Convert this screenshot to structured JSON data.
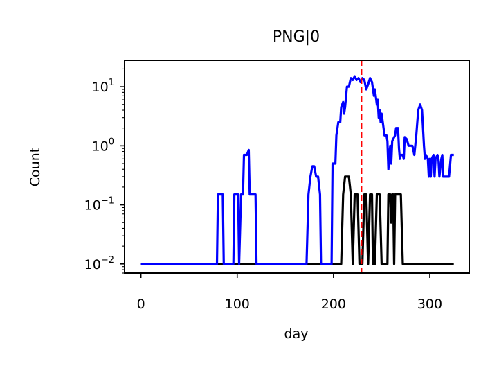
{
  "chart_data": {
    "type": "line",
    "title": "PNG|0",
    "xlabel": "day",
    "ylabel": "Count",
    "yscale": "log",
    "xlim": [
      -17,
      341
    ],
    "ylim": [
      0.007,
      28
    ],
    "xticks": [
      0,
      100,
      200,
      300
    ],
    "xtick_labels": [
      "0",
      "100",
      "200",
      "300"
    ],
    "yticks": [
      0.01,
      0.1,
      1,
      10
    ],
    "ytick_labels": [
      {
        "base": "10",
        "exp": "−2"
      },
      {
        "base": "10",
        "exp": "−1"
      },
      {
        "base": "10",
        "exp": "0"
      },
      {
        "base": "10",
        "exp": "1"
      }
    ],
    "grid": false,
    "vline": {
      "x": 229,
      "color": "#ff0000",
      "style": "dashed"
    },
    "series": [
      {
        "color": "#000000",
        "points": [
          [
            0,
            0.01
          ],
          [
            208,
            0.01
          ],
          [
            210,
            0.15
          ],
          [
            212,
            0.3
          ],
          [
            216,
            0.3
          ],
          [
            218,
            0.15
          ],
          [
            220,
            0.01
          ],
          [
            222,
            0.15
          ],
          [
            225,
            0.15
          ],
          [
            227,
            0.01
          ],
          [
            230,
            0.01
          ],
          [
            232,
            0.15
          ],
          [
            234,
            0.15
          ],
          [
            236,
            0.01
          ],
          [
            238,
            0.15
          ],
          [
            240,
            0.15
          ],
          [
            241,
            0.01
          ],
          [
            243,
            0.01
          ],
          [
            245,
            0.15
          ],
          [
            248,
            0.15
          ],
          [
            250,
            0.01
          ],
          [
            256,
            0.01
          ],
          [
            257,
            0.15
          ],
          [
            259,
            0.15
          ],
          [
            260,
            0.05
          ],
          [
            261,
            0.15
          ],
          [
            262,
            0.15
          ],
          [
            263,
            0.01
          ],
          [
            264,
            0.15
          ],
          [
            270,
            0.15
          ],
          [
            272,
            0.01
          ],
          [
            325,
            0.01
          ]
        ]
      },
      {
        "color": "#0000ff",
        "points": [
          [
            0,
            0.01
          ],
          [
            79,
            0.01
          ],
          [
            80,
            0.15
          ],
          [
            85,
            0.15
          ],
          [
            86,
            0.01
          ],
          [
            96,
            0.01
          ],
          [
            97,
            0.15
          ],
          [
            101,
            0.15
          ],
          [
            102,
            0.01
          ],
          [
            104,
            0.15
          ],
          [
            106,
            0.15
          ],
          [
            107,
            0.7
          ],
          [
            110,
            0.7
          ],
          [
            112,
            0.85
          ],
          [
            113,
            0.15
          ],
          [
            119,
            0.15
          ],
          [
            120,
            0.01
          ],
          [
            172,
            0.01
          ],
          [
            174,
            0.15
          ],
          [
            176,
            0.3
          ],
          [
            178,
            0.45
          ],
          [
            180,
            0.45
          ],
          [
            182,
            0.3
          ],
          [
            184,
            0.3
          ],
          [
            186,
            0.15
          ],
          [
            187,
            0.01
          ],
          [
            198,
            0.01
          ],
          [
            199,
            0.5
          ],
          [
            202,
            0.5
          ],
          [
            203,
            1.5
          ],
          [
            205,
            2.5
          ],
          [
            207,
            2.5
          ],
          [
            208,
            4.5
          ],
          [
            210,
            5.5
          ],
          [
            211,
            3.5
          ],
          [
            212,
            4.5
          ],
          [
            214,
            10
          ],
          [
            216,
            10
          ],
          [
            218,
            14
          ],
          [
            220,
            13
          ],
          [
            222,
            15
          ],
          [
            224,
            13
          ],
          [
            226,
            14
          ],
          [
            228,
            12
          ],
          [
            230,
            14
          ],
          [
            232,
            13
          ],
          [
            234,
            9
          ],
          [
            236,
            11
          ],
          [
            238,
            14
          ],
          [
            240,
            12
          ],
          [
            242,
            7
          ],
          [
            243,
            9
          ],
          [
            245,
            5
          ],
          [
            246,
            6
          ],
          [
            247,
            3
          ],
          [
            248,
            4
          ],
          [
            249,
            2.5
          ],
          [
            250,
            3.5
          ],
          [
            252,
            2
          ],
          [
            253,
            1.5
          ],
          [
            255,
            1.5
          ],
          [
            256,
            1.2
          ],
          [
            257,
            0.4
          ],
          [
            258,
            0.7
          ],
          [
            259,
            1
          ],
          [
            260,
            0.5
          ],
          [
            261,
            1.2
          ],
          [
            262,
            1.3
          ],
          [
            264,
            1.5
          ],
          [
            265,
            2
          ],
          [
            267,
            2
          ],
          [
            268,
            0.9
          ],
          [
            269,
            0.6
          ],
          [
            270,
            0.7
          ],
          [
            272,
            0.7
          ],
          [
            273,
            0.6
          ],
          [
            274,
            1.4
          ],
          [
            276,
            1.3
          ],
          [
            278,
            1
          ],
          [
            280,
            1
          ],
          [
            282,
            1
          ],
          [
            284,
            0.7
          ],
          [
            286,
            1.5
          ],
          [
            288,
            4
          ],
          [
            290,
            5
          ],
          [
            292,
            4
          ],
          [
            294,
            1
          ],
          [
            295,
            0.6
          ],
          [
            296,
            0.7
          ],
          [
            298,
            0.6
          ],
          [
            299,
            0.3
          ],
          [
            300,
            0.6
          ],
          [
            301,
            0.3
          ],
          [
            302,
            0.6
          ],
          [
            304,
            0.7
          ],
          [
            305,
            0.3
          ],
          [
            306,
            0.6
          ],
          [
            308,
            0.7
          ],
          [
            309,
            0.6
          ],
          [
            310,
            0.3
          ],
          [
            312,
            0.6
          ],
          [
            313,
            0.7
          ],
          [
            314,
            0.3
          ],
          [
            316,
            0.3
          ],
          [
            318,
            0.3
          ],
          [
            320,
            0.3
          ],
          [
            322,
            0.7
          ],
          [
            325,
            0.7
          ]
        ]
      }
    ]
  }
}
